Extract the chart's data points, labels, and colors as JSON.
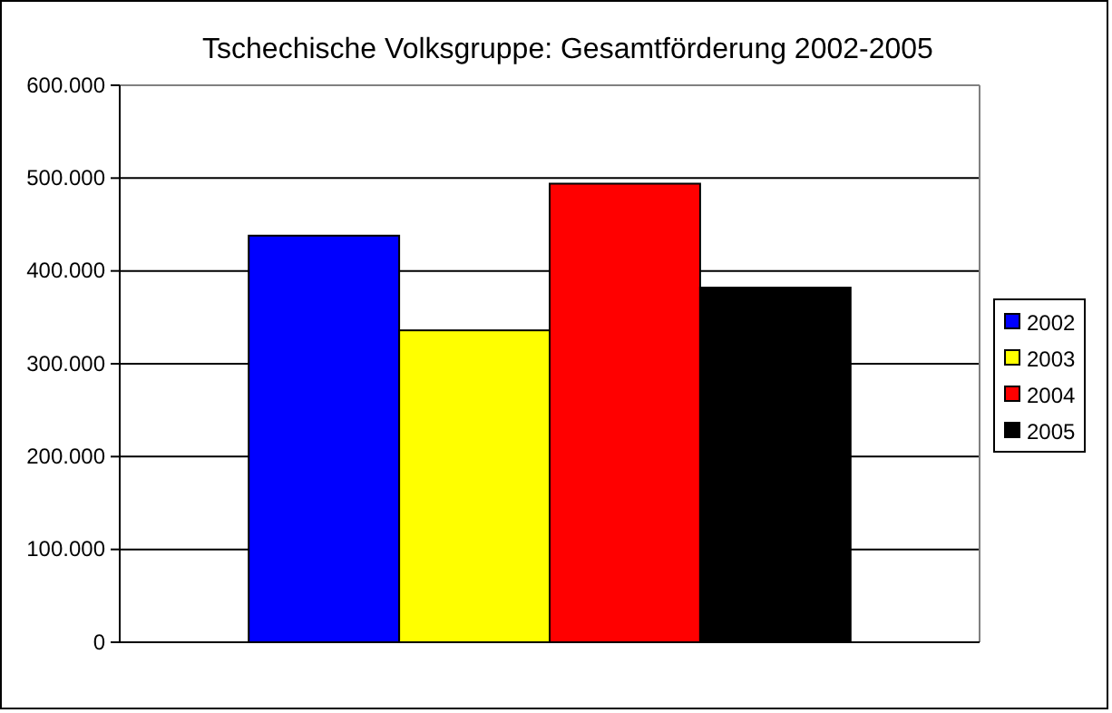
{
  "chart_data": {
    "type": "bar",
    "title": "Tschechische Volksgruppe: Gesamtförderung 2002-2005",
    "categories": [
      null
    ],
    "series": [
      {
        "name": "2002",
        "color": "#0000ff",
        "values": [
          438000
        ]
      },
      {
        "name": "2003",
        "color": "#ffff00",
        "values": [
          336000
        ]
      },
      {
        "name": "2004",
        "color": "#ff0000",
        "values": [
          494000
        ]
      },
      {
        "name": "2005",
        "color": "#000000",
        "values": [
          382000
        ]
      }
    ],
    "ylim": [
      0,
      600000
    ],
    "yticks": [
      {
        "value": 0,
        "label": "0"
      },
      {
        "value": 100000,
        "label": "100.000"
      },
      {
        "value": 200000,
        "label": "200.000"
      },
      {
        "value": 300000,
        "label": "300.000"
      },
      {
        "value": 400000,
        "label": "400.000"
      },
      {
        "value": 500000,
        "label": "500.000"
      },
      {
        "value": 600000,
        "label": "600.000"
      }
    ],
    "grid": "y",
    "legend": "right"
  }
}
